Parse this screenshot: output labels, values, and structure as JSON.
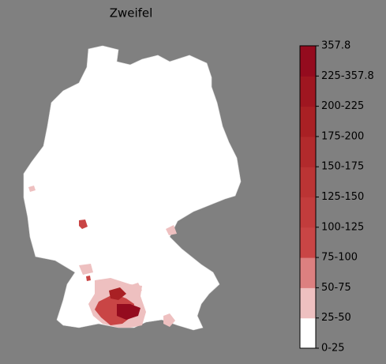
{
  "map": {
    "title": "Zweifel"
  },
  "colorbar": {
    "labels": [
      "0-25",
      "25-50",
      "50-75",
      "75-100",
      "100-125",
      "125-150",
      "150-175",
      "175-200",
      "200-225",
      "225-357.8",
      "357.8"
    ],
    "colors": [
      "#ffffff",
      "#eec0c0",
      "#dc8080",
      "#c94545",
      "#c23c3c",
      "#bb3434",
      "#b22a2c",
      "#a92024",
      "#9f1620",
      "#940b1e"
    ]
  }
}
